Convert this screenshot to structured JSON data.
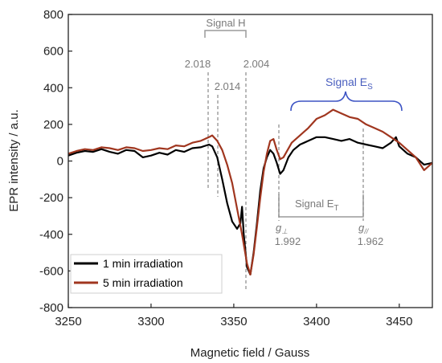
{
  "chart_data": {
    "type": "line",
    "xlabel": "Magnetic field / Gauss",
    "ylabel": "EPR intensity / a.u.",
    "xlim": [
      3250,
      3470
    ],
    "ylim": [
      -800,
      800
    ],
    "x_ticks": [
      "3250",
      "3300",
      "3350",
      "3400",
      "3450"
    ],
    "y_ticks": [
      "800",
      "600",
      "400",
      "200",
      "0",
      "-200",
      "-400",
      "-600",
      "-800"
    ],
    "grid": false,
    "legend_position": "bottom-left",
    "series": [
      {
        "name": "1 min irradiation",
        "color": "#000000",
        "x": [
          3250,
          3255,
          3260,
          3265,
          3270,
          3275,
          3280,
          3285,
          3290,
          3295,
          3300,
          3305,
          3310,
          3315,
          3320,
          3325,
          3330,
          3335,
          3337,
          3340,
          3343,
          3346,
          3349,
          3352,
          3354,
          3355,
          3356,
          3358,
          3360,
          3362,
          3364,
          3366,
          3368,
          3370,
          3372,
          3374,
          3376,
          3378,
          3380,
          3383,
          3386,
          3390,
          3395,
          3400,
          3405,
          3410,
          3415,
          3420,
          3425,
          3430,
          3435,
          3440,
          3445,
          3448,
          3450,
          3455,
          3460,
          3465,
          3470
        ],
        "y": [
          30,
          45,
          55,
          50,
          65,
          50,
          40,
          60,
          55,
          20,
          30,
          45,
          35,
          60,
          50,
          70,
          75,
          90,
          80,
          20,
          -100,
          -230,
          -330,
          -370,
          -340,
          -250,
          -400,
          -580,
          -620,
          -500,
          -340,
          -160,
          -40,
          20,
          60,
          40,
          -10,
          -70,
          -50,
          20,
          60,
          90,
          110,
          130,
          130,
          120,
          110,
          120,
          100,
          90,
          80,
          70,
          100,
          130,
          80,
          40,
          20,
          -20,
          -10
        ]
      },
      {
        "name": "5 min irradiation",
        "color": "#a0361f",
        "x": [
          3250,
          3255,
          3260,
          3265,
          3270,
          3275,
          3280,
          3285,
          3290,
          3295,
          3300,
          3305,
          3310,
          3315,
          3320,
          3325,
          3330,
          3335,
          3337,
          3340,
          3343,
          3346,
          3349,
          3352,
          3355,
          3358,
          3360,
          3362,
          3364,
          3366,
          3368,
          3370,
          3372,
          3374,
          3376,
          3378,
          3380,
          3385,
          3390,
          3395,
          3400,
          3405,
          3410,
          3415,
          3420,
          3425,
          3430,
          3435,
          3440,
          3445,
          3450,
          3455,
          3460,
          3465,
          3470
        ],
        "y": [
          40,
          55,
          65,
          60,
          75,
          70,
          60,
          75,
          70,
          55,
          60,
          70,
          65,
          85,
          80,
          100,
          110,
          130,
          140,
          110,
          60,
          -20,
          -120,
          -260,
          -400,
          -560,
          -620,
          -510,
          -360,
          -200,
          -60,
          40,
          110,
          120,
          60,
          10,
          20,
          100,
          140,
          180,
          230,
          250,
          280,
          260,
          240,
          230,
          200,
          180,
          160,
          130,
          100,
          60,
          20,
          -50,
          -10
        ]
      }
    ],
    "annotations": {
      "signal_h": "Signal H",
      "g_2018": "2.018",
      "g_2014": "2.014",
      "g_2004": "2.004",
      "signal_es_main": "Signal E",
      "signal_es_sub": "S",
      "signal_et_main": "Signal E",
      "signal_et_sub": "T",
      "g_perp_main": "g",
      "g_perp_sub": "⊥",
      "g_perp_value": "1.992",
      "g_par_main": "g",
      "g_par_sub": "//",
      "g_par_value": "1.962"
    }
  }
}
